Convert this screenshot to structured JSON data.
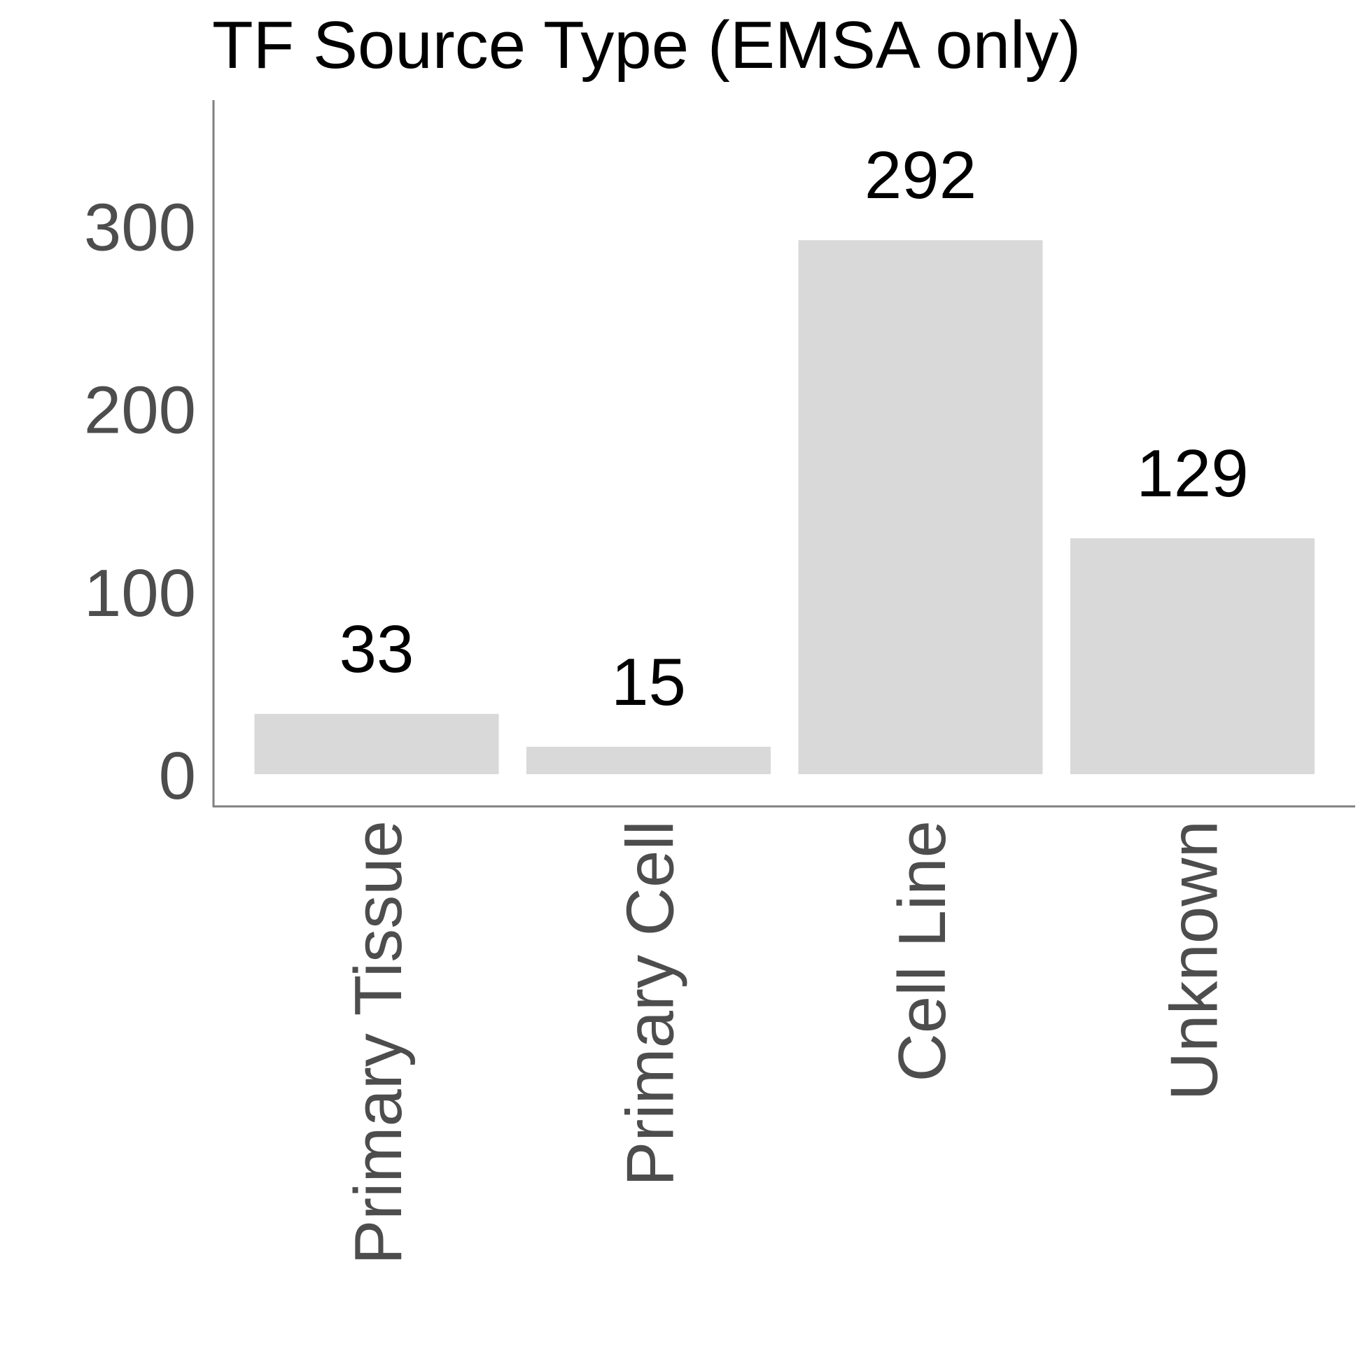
{
  "chart_data": {
    "type": "bar",
    "title": "TF Source Type (EMSA only)",
    "xlabel": "",
    "ylabel": "",
    "categories": [
      "Primary Tissue",
      "Primary Cell",
      "Cell Line",
      "Unknown"
    ],
    "values": [
      33,
      15,
      292,
      129
    ],
    "data_labels": [
      "33",
      "15",
      "292",
      "129"
    ],
    "yticks": [
      0,
      100,
      200,
      300
    ],
    "ylim": [
      0,
      382
    ],
    "grid": false,
    "legend": "none",
    "colors": {
      "bar": "#d9d9d9",
      "axis": "#808080",
      "tick_text": "#4d4d4d",
      "title_text": "#000000",
      "data_label_text": "#000000"
    }
  }
}
